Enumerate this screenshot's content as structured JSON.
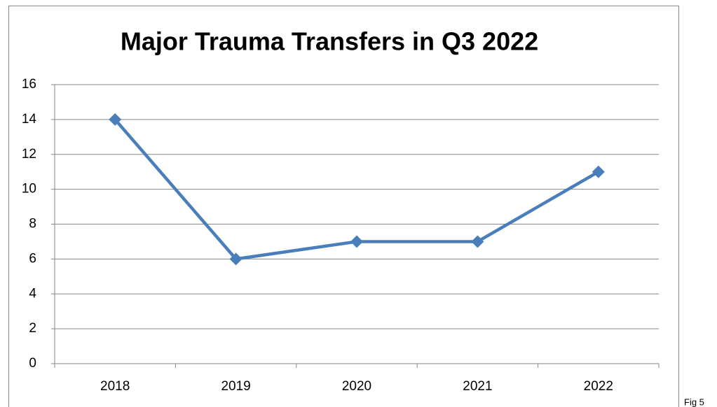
{
  "chart_data": {
    "type": "line",
    "title": "Major Trauma Transfers in Q3 2022",
    "categories": [
      "2018",
      "2019",
      "2020",
      "2021",
      "2022"
    ],
    "series": [
      {
        "name": "Major Trauma Transfers",
        "color": "#4a7ebb",
        "values": [
          14,
          6,
          7,
          7,
          11
        ]
      }
    ],
    "ylim": [
      0,
      16
    ],
    "yticks": [
      0,
      2,
      4,
      6,
      8,
      10,
      12,
      14,
      16
    ],
    "grid": true,
    "annotation": "Fig 5"
  }
}
